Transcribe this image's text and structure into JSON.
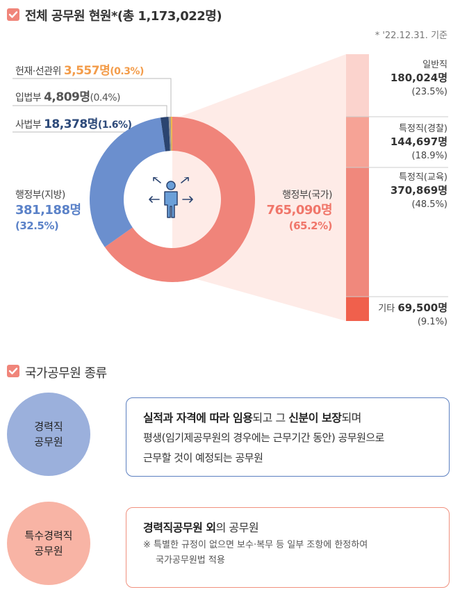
{
  "header": {
    "title": "전체 공무원 현원*(총 1,173,022명)",
    "date_note": "* '22.12.31. 기준"
  },
  "left_labels": {
    "hunjae": {
      "name": "헌재·선관위",
      "value": "3,557명",
      "pct": "(0.3%)"
    },
    "ipbeop": {
      "name": "입법부",
      "value": "4,809명",
      "pct": "(0.4%)"
    },
    "sabeop": {
      "name": "사법부",
      "value": "18,378명",
      "pct": "(1.6%)"
    },
    "jibang": {
      "name": "행정부(지방)",
      "value": "381,188명",
      "pct": "(32.5%)"
    }
  },
  "center_label": {
    "name": "행정부(국가)",
    "value": "765,090명",
    "pct": "(65.2%)"
  },
  "breakdown": {
    "general": {
      "name": "일반직",
      "value": "180,024명",
      "pct": "(23.5%)"
    },
    "police": {
      "name": "특정직(경찰)",
      "value": "144,697명",
      "pct": "(18.9%)"
    },
    "education": {
      "name": "특정직(교육)",
      "value": "370,869명",
      "pct": "(48.5%)"
    },
    "other": {
      "name": "기타",
      "value": "69,500명",
      "pct": "(9.1%)"
    }
  },
  "chart_data": [
    {
      "type": "pie",
      "title": "전체 공무원 현원*(총 1,173,022명)",
      "categories": [
        "행정부(국가)",
        "행정부(지방)",
        "사법부",
        "입법부",
        "헌재·선관위"
      ],
      "values": [
        765090,
        381188,
        18378,
        4809,
        3557
      ],
      "percent": [
        65.2,
        32.5,
        1.6,
        0.4,
        0.3
      ],
      "colors": [
        "#f0847a",
        "#6b8fce",
        "#2b4470",
        "#9a9a9a",
        "#f0b84a"
      ],
      "style": "donut"
    },
    {
      "type": "bar",
      "title": "행정부(국가)",
      "categories": [
        "일반직",
        "특정직(경찰)",
        "특정직(교육)",
        "기타"
      ],
      "values": [
        180024,
        144697,
        370869,
        69500
      ],
      "percent": [
        23.5,
        18.9,
        48.5,
        9.1
      ],
      "colors": [
        "#fbd3cd",
        "#f6a396",
        "#f0887c",
        "#f0604c"
      ],
      "style": "stacked-vertical"
    }
  ],
  "section2": {
    "title": "국가공무원 종류",
    "career": {
      "circle_line1": "경력직",
      "circle_line2": "공무원",
      "bold1": "실적과 자격에 따라 임용",
      "mid1": "되고 그 ",
      "bold2": "신분이 보장",
      "mid2": "되며",
      "line2": "평생(임기제공무원의 경우에는 근무기간 동안) 공무원으로",
      "line3": "근무할 것이 예정되는 공무원"
    },
    "special": {
      "circle_line1": "특수경력직",
      "circle_line2": "공무원",
      "bold1": "경력직공무원 외",
      "rest1": "의 공무원",
      "note1": "※ 특별한 규정이 없으면 보수·복무 등 일부 조항에 한정하여",
      "note2": "국가공무원법 적용"
    }
  }
}
